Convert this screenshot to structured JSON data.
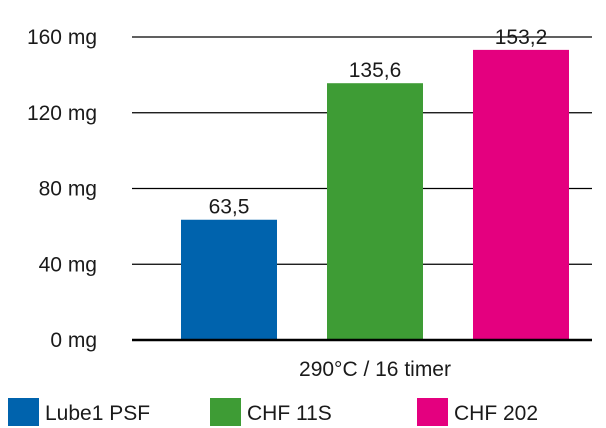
{
  "chart_data": {
    "type": "bar",
    "categories": [
      "290°C / 16 timer"
    ],
    "series": [
      {
        "name": "Lube1 PSF",
        "values": [
          63.5
        ],
        "label": "63,5",
        "color": "#0063ad"
      },
      {
        "name": "CHF 11S",
        "values": [
          135.6
        ],
        "label": "135,6",
        "color": "#3e9c35"
      },
      {
        "name": "CHF 202",
        "values": [
          153.2
        ],
        "label": "153,2",
        "color": "#e4007f"
      }
    ],
    "y_ticks": [
      {
        "value": 0,
        "label": "0 mg"
      },
      {
        "value": 40,
        "label": "40 mg"
      },
      {
        "value": 80,
        "label": "80 mg"
      },
      {
        "value": 120,
        "label": "120 mg"
      },
      {
        "value": 160,
        "label": "160 mg"
      }
    ],
    "ylim": [
      0,
      160
    ],
    "title": "",
    "xlabel": "",
    "ylabel": "",
    "grid": true,
    "legend": "bottom"
  }
}
